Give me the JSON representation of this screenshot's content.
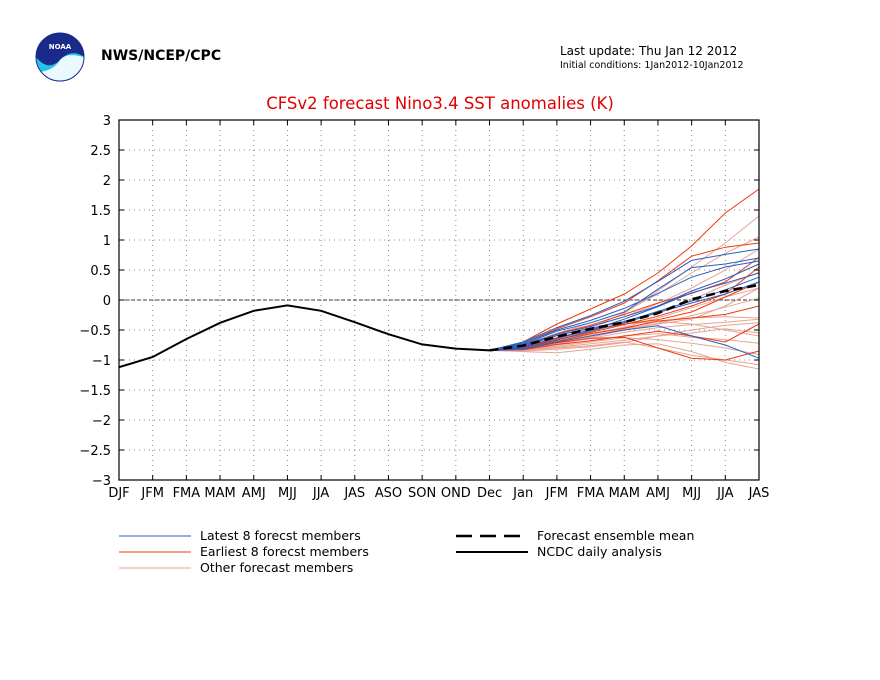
{
  "header": {
    "agency": "NWS/NCEP/CPC",
    "last_update": "Last update: Thu Jan 12 2012",
    "initial_conditions": "Initial conditions: 1Jan2012-10Jan2012",
    "logo_text": "NOAA"
  },
  "chart_data": {
    "type": "line",
    "title": "CFSv2 forecast Nino3.4 SST anomalies (K)",
    "categories": [
      "DJF",
      "JFM",
      "FMA",
      "MAM",
      "AMJ",
      "MJJ",
      "JJA",
      "JAS",
      "ASO",
      "SON",
      "OND",
      "Dec",
      "Jan",
      "JFM",
      "FMA",
      "MAM",
      "AMJ",
      "MJJ",
      "JJA",
      "JAS"
    ],
    "yticks": [
      "3",
      "2.5",
      "2",
      "1.5",
      "1",
      "0.5",
      "0",
      "−0.5",
      "−1",
      "−1.5",
      "−2",
      "−2.5",
      "−3"
    ],
    "ylim": [
      -3,
      3
    ],
    "grid": true,
    "zero_line": true,
    "legend_placement": "bottom",
    "colors": {
      "latest": "#2a5ec2",
      "earliest": "#ef3a10",
      "other": "#e8a595",
      "mean": "#000000",
      "analysis": "#000000"
    },
    "analysis": [
      -1.12,
      -0.95,
      -0.65,
      -0.38,
      -0.18,
      -0.09,
      -0.18,
      -0.37,
      -0.57,
      -0.74,
      -0.81,
      -0.84
    ],
    "ensemble_mean": [
      -0.84,
      -0.76,
      -0.61,
      -0.48,
      -0.37,
      -0.22,
      0.01,
      0.15,
      0.25
    ],
    "latest_members": [
      [
        -0.84,
        -0.74,
        -0.52,
        -0.38,
        -0.2,
        0.18,
        0.54,
        0.6,
        0.7
      ],
      [
        -0.84,
        -0.7,
        -0.46,
        -0.26,
        -0.02,
        0.31,
        0.66,
        0.76,
        0.85
      ],
      [
        -0.84,
        -0.8,
        -0.67,
        -0.52,
        -0.38,
        -0.21,
        -0.05,
        0.1,
        0.3
      ],
      [
        -0.84,
        -0.78,
        -0.63,
        -0.5,
        -0.32,
        -0.11,
        0.12,
        0.28,
        0.45
      ],
      [
        -0.84,
        -0.75,
        -0.57,
        -0.44,
        -0.28,
        -0.1,
        0.15,
        0.35,
        0.6
      ],
      [
        -0.84,
        -0.82,
        -0.7,
        -0.6,
        -0.5,
        -0.43,
        -0.6,
        -0.75,
        -0.97
      ],
      [
        -0.84,
        -0.77,
        -0.59,
        -0.47,
        -0.36,
        -0.19,
        -0.02,
        0.17,
        0.38
      ],
      [
        -0.84,
        -0.72,
        -0.5,
        -0.34,
        -0.14,
        0.11,
        0.38,
        0.55,
        0.65
      ]
    ],
    "earliest_members": [
      [
        -0.84,
        -0.7,
        -0.4,
        -0.15,
        0.1,
        0.45,
        0.9,
        1.45,
        1.85
      ],
      [
        -0.84,
        -0.72,
        -0.48,
        -0.28,
        -0.05,
        0.32,
        0.73,
        0.88,
        0.95
      ],
      [
        -0.84,
        -0.8,
        -0.66,
        -0.54,
        -0.41,
        -0.27,
        -0.1,
        0.1,
        0.55
      ],
      [
        -0.84,
        -0.83,
        -0.74,
        -0.68,
        -0.6,
        -0.52,
        -0.6,
        -0.7,
        -0.4
      ],
      [
        -0.84,
        -0.79,
        -0.64,
        -0.5,
        -0.4,
        -0.33,
        -0.2,
        0.05,
        0.3
      ],
      [
        -0.84,
        -0.82,
        -0.71,
        -0.64,
        -0.62,
        -0.8,
        -0.97,
        -1.0,
        -0.85
      ],
      [
        -0.84,
        -0.77,
        -0.56,
        -0.42,
        -0.24,
        -0.05,
        0.11,
        0.3,
        0.71
      ],
      [
        -0.84,
        -0.81,
        -0.69,
        -0.56,
        -0.47,
        -0.35,
        -0.3,
        -0.24,
        -0.1
      ]
    ],
    "other_members": [
      [
        -0.84,
        -0.84,
        -0.8,
        -0.76,
        -0.7,
        -0.8,
        -0.92,
        -1.0,
        -1.08
      ],
      [
        -0.84,
        -0.86,
        -0.88,
        -0.82,
        -0.75,
        -0.73,
        -0.86,
        -1.04,
        -1.15
      ],
      [
        -0.84,
        -0.78,
        -0.64,
        -0.46,
        -0.22,
        0.15,
        0.55,
        0.95,
        1.4
      ],
      [
        -0.84,
        -0.74,
        -0.56,
        -0.38,
        -0.2,
        0.1,
        0.45,
        0.78,
        1.05
      ],
      [
        -0.84,
        -0.8,
        -0.72,
        -0.62,
        -0.5,
        -0.4,
        -0.32,
        -0.1,
        0.2
      ],
      [
        -0.84,
        -0.82,
        -0.77,
        -0.7,
        -0.63,
        -0.66,
        -0.72,
        -0.8,
        -0.91
      ],
      [
        -0.84,
        -0.79,
        -0.66,
        -0.56,
        -0.46,
        -0.36,
        -0.3,
        -0.28,
        -0.3
      ],
      [
        -0.84,
        -0.83,
        -0.79,
        -0.73,
        -0.67,
        -0.6,
        -0.55,
        -0.48,
        -0.55
      ],
      [
        -0.84,
        -0.85,
        -0.82,
        -0.78,
        -0.71,
        -0.6,
        -0.5,
        -0.42,
        -0.38
      ],
      [
        -0.84,
        -0.78,
        -0.65,
        -0.52,
        -0.37,
        -0.2,
        0.0,
        0.25,
        0.46
      ],
      [
        -0.84,
        -0.82,
        -0.73,
        -0.64,
        -0.54,
        -0.46,
        -0.41,
        -0.37,
        -0.32
      ],
      [
        -0.84,
        -0.81,
        -0.7,
        -0.6,
        -0.48,
        -0.39,
        -0.26,
        -0.12,
        0.03
      ],
      [
        -0.84,
        -0.77,
        -0.63,
        -0.5,
        -0.4,
        -0.36,
        -0.4,
        -0.5,
        -0.6
      ],
      [
        -0.84,
        -0.8,
        -0.69,
        -0.58,
        -0.45,
        -0.3,
        -0.13,
        0.05,
        0.2
      ],
      [
        -0.84,
        -0.83,
        -0.75,
        -0.68,
        -0.6,
        -0.56,
        -0.62,
        -0.66,
        -0.72
      ],
      [
        -0.84,
        -0.76,
        -0.6,
        -0.45,
        -0.28,
        -0.06,
        0.2,
        0.5,
        0.85
      ]
    ],
    "legend": [
      {
        "label": "Latest 8 forecst members",
        "style": "latest"
      },
      {
        "label": "Earliest 8 forecst members",
        "style": "earliest"
      },
      {
        "label": "Other forecast members",
        "style": "other"
      },
      {
        "label": "Forecast ensemble mean",
        "style": "mean"
      },
      {
        "label": "NCDC daily analysis",
        "style": "analysis"
      }
    ]
  }
}
